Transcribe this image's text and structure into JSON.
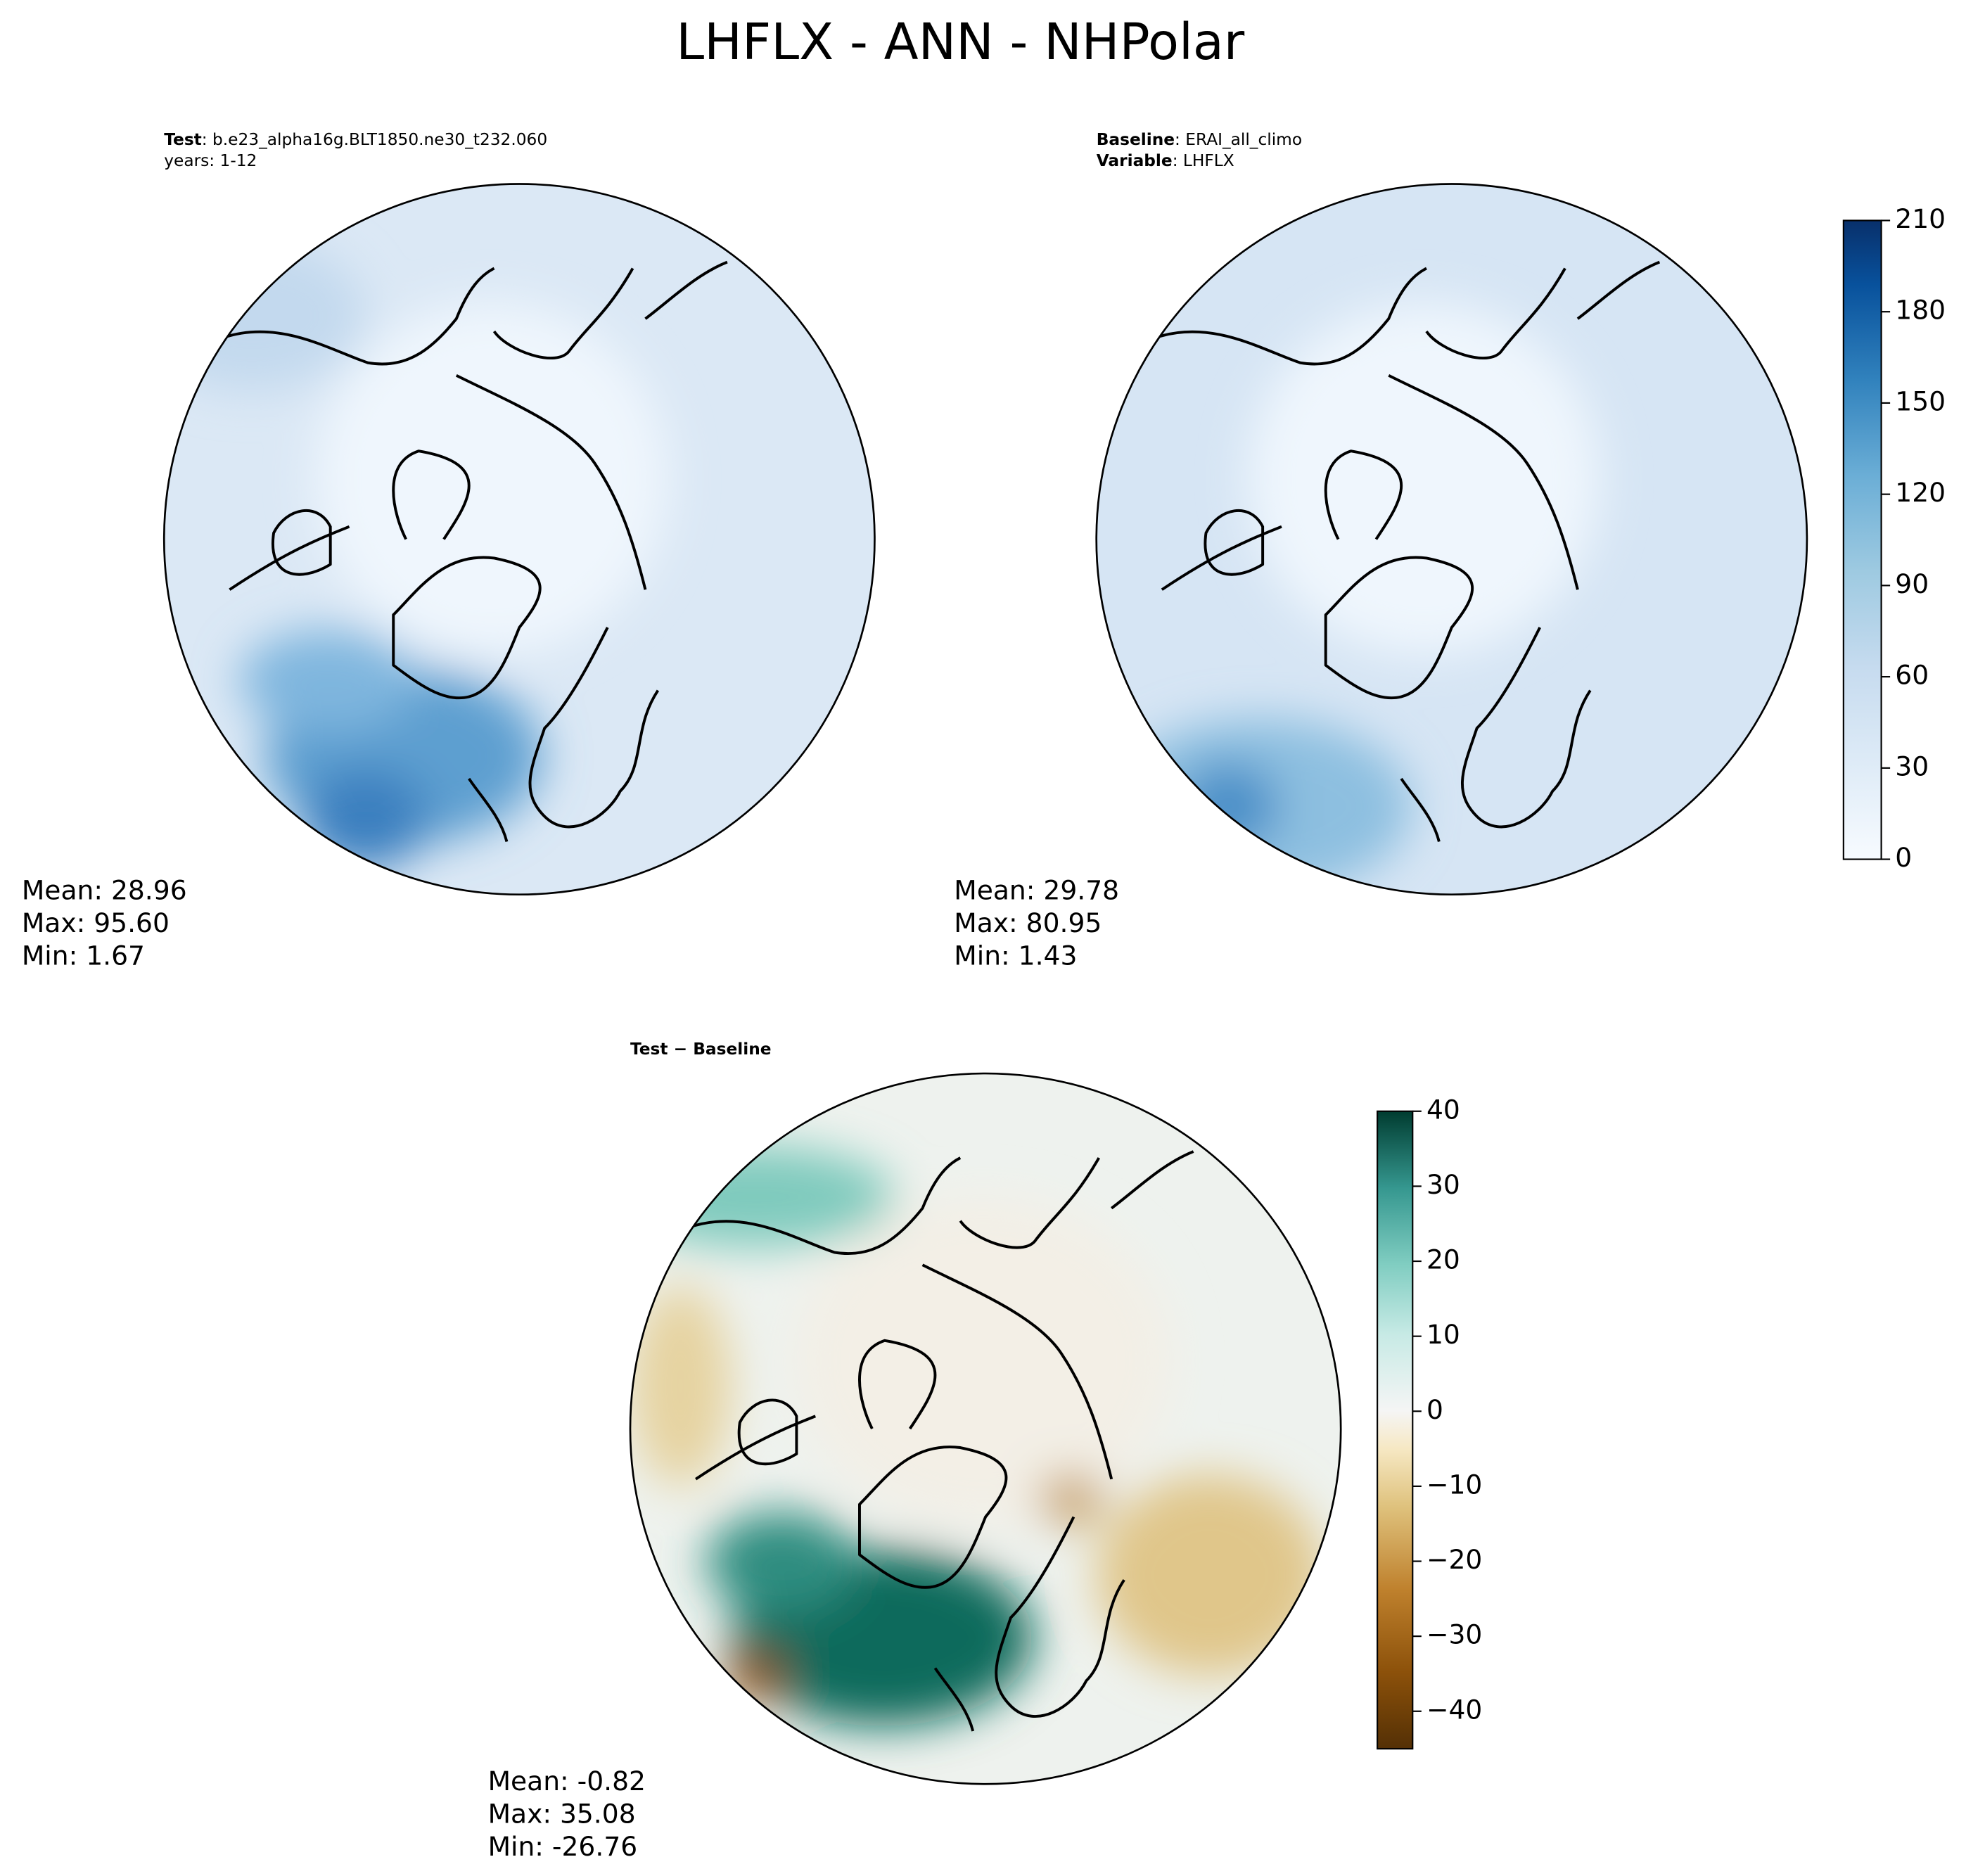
{
  "title": "LHFLX - ANN - NHPolar",
  "panels": [
    {
      "header": [
        {
          "label": "Test",
          "value": ": b.e23_alpha16g.BLT1850.ne30_t232.060"
        },
        {
          "value": "years: 1-12"
        }
      ],
      "stats": [
        "Mean: 28.96",
        "Max: 95.60",
        "Min:  1.67"
      ]
    },
    {
      "header": [
        {
          "label": "Baseline",
          "value": ": ERAI_all_climo"
        },
        {
          "label": "Variable",
          "value": ": LHFLX"
        }
      ],
      "stats": [
        "Mean: 29.78",
        "Max: 80.95",
        "Min:  1.43"
      ]
    },
    {
      "header": [
        {
          "label": "Test − Baseline"
        }
      ],
      "stats": [
        "Mean: -0.82",
        "Max: 35.08",
        "Min: -26.76"
      ]
    }
  ],
  "colorbars": [
    {
      "ylim": [
        0,
        210
      ],
      "yticks": [
        0,
        30,
        60,
        90,
        120,
        150,
        180,
        210
      ]
    },
    {
      "ylim": [
        -45,
        40
      ],
      "yticks": [
        {
          "value": -40,
          "label": "−40"
        },
        {
          "value": -30,
          "label": "−30"
        },
        {
          "value": -20,
          "label": "−20"
        },
        {
          "value": -10,
          "label": "−10"
        },
        0,
        10,
        20,
        30,
        40
      ]
    }
  ]
}
